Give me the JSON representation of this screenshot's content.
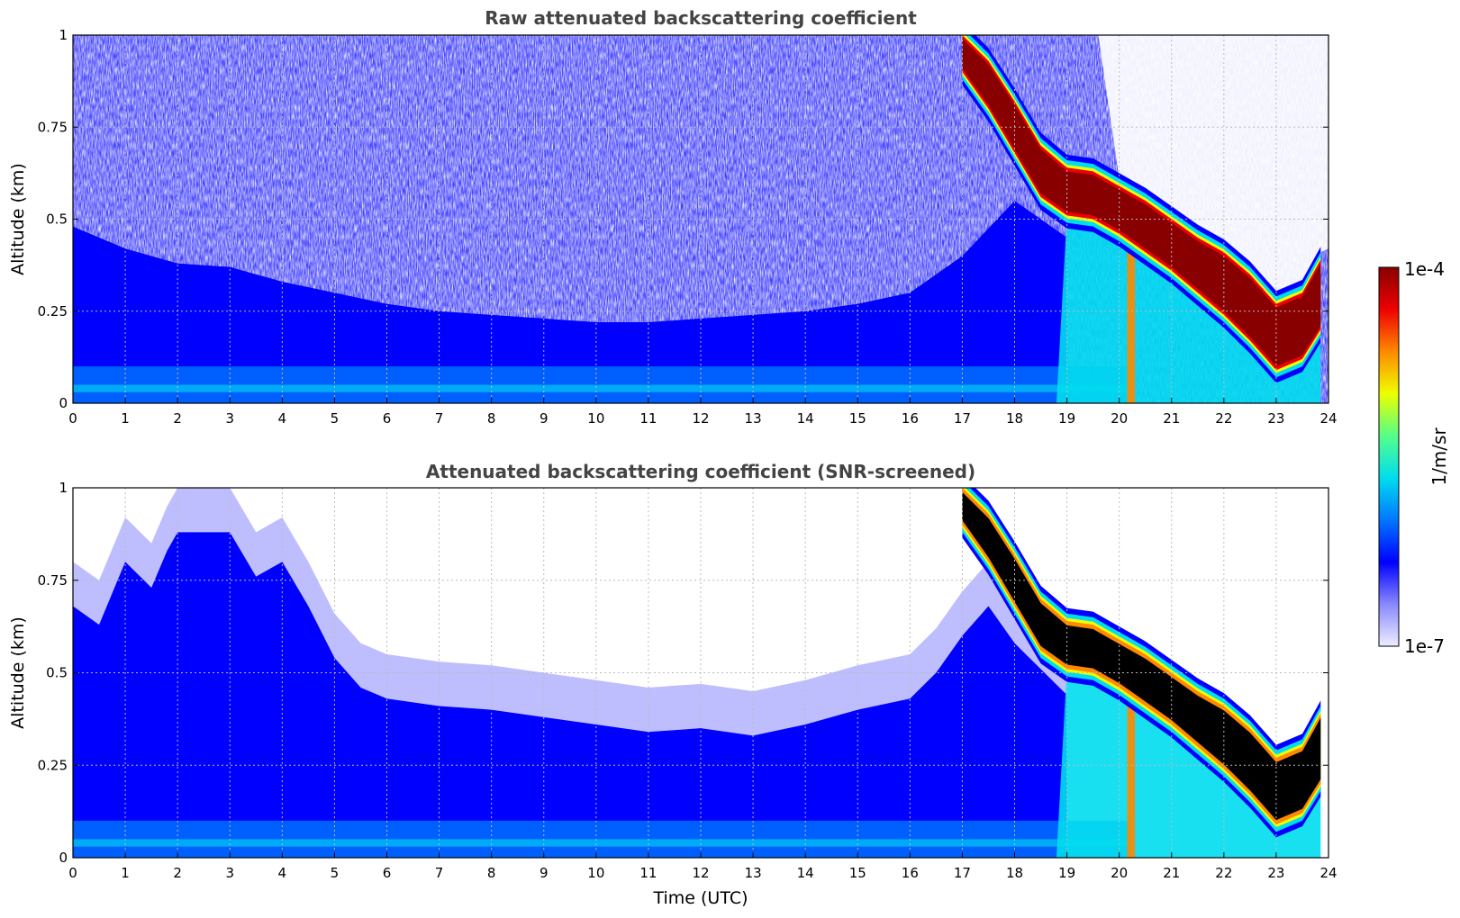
{
  "chart_data": [
    {
      "type": "heatmap",
      "title": "Raw attenuated backscattering coefficient",
      "xlabel": "",
      "ylabel": "Altitude (km)",
      "xlim": [
        0,
        24
      ],
      "ylim": [
        0,
        1
      ],
      "xticks": [
        0,
        1,
        2,
        3,
        4,
        5,
        6,
        7,
        8,
        9,
        10,
        11,
        12,
        13,
        14,
        15,
        16,
        17,
        18,
        19,
        20,
        21,
        22,
        23,
        24
      ],
      "yticks": [
        0,
        0.25,
        0.5,
        0.75,
        1
      ],
      "ytick_labels": [
        "0",
        "0.25",
        "0.5",
        "0.75",
        "1"
      ],
      "grid": true,
      "noise_screened": false,
      "cloud_layer_top_km": [
        [
          17.0,
          1.0
        ],
        [
          17.5,
          0.93
        ],
        [
          18.0,
          0.82
        ],
        [
          18.5,
          0.7
        ],
        [
          19.0,
          0.64
        ],
        [
          19.5,
          0.63
        ],
        [
          20.0,
          0.59
        ],
        [
          20.5,
          0.55
        ],
        [
          21.0,
          0.5
        ],
        [
          21.5,
          0.45
        ],
        [
          22.0,
          0.41
        ],
        [
          22.5,
          0.35
        ],
        [
          23.0,
          0.27
        ],
        [
          23.5,
          0.3
        ],
        [
          23.85,
          0.39
        ]
      ],
      "cloud_layer_base_km": [
        [
          17.0,
          0.9
        ],
        [
          17.5,
          0.8
        ],
        [
          18.0,
          0.68
        ],
        [
          18.5,
          0.56
        ],
        [
          19.0,
          0.51
        ],
        [
          19.5,
          0.5
        ],
        [
          20.0,
          0.46
        ],
        [
          20.5,
          0.41
        ],
        [
          21.0,
          0.36
        ],
        [
          21.5,
          0.3
        ],
        [
          22.0,
          0.24
        ],
        [
          22.5,
          0.17
        ],
        [
          23.0,
          0.09
        ],
        [
          23.5,
          0.12
        ],
        [
          23.85,
          0.2
        ]
      ],
      "boundary_layer_top_km": [
        [
          0,
          0.48
        ],
        [
          1,
          0.42
        ],
        [
          2,
          0.38
        ],
        [
          3,
          0.37
        ],
        [
          4,
          0.33
        ],
        [
          5,
          0.3
        ],
        [
          6,
          0.27
        ],
        [
          7,
          0.25
        ],
        [
          8,
          0.24
        ],
        [
          9,
          0.23
        ],
        [
          10,
          0.22
        ],
        [
          11,
          0.22
        ],
        [
          12,
          0.23
        ],
        [
          13,
          0.24
        ],
        [
          14,
          0.25
        ],
        [
          15,
          0.27
        ],
        [
          16,
          0.3
        ],
        [
          17,
          0.4
        ],
        [
          18,
          0.55
        ],
        [
          19,
          0.45
        ]
      ]
    },
    {
      "type": "heatmap",
      "title": "Attenuated backscattering coefficient (SNR-screened)",
      "xlabel": "Time (UTC)",
      "ylabel": "Altitude (km)",
      "xlim": [
        0,
        24
      ],
      "ylim": [
        0,
        1
      ],
      "xticks": [
        0,
        1,
        2,
        3,
        4,
        5,
        6,
        7,
        8,
        9,
        10,
        11,
        12,
        13,
        14,
        15,
        16,
        17,
        18,
        19,
        20,
        21,
        22,
        23,
        24
      ],
      "yticks": [
        0,
        0.25,
        0.5,
        0.75,
        1
      ],
      "ytick_labels": [
        "0",
        "0.25",
        "0.5",
        "0.75",
        "1"
      ],
      "grid": true,
      "noise_screened": true,
      "signal_top_km": [
        [
          0,
          0.8
        ],
        [
          0.5,
          0.75
        ],
        [
          1,
          0.92
        ],
        [
          1.5,
          0.85
        ],
        [
          1.8,
          0.95
        ],
        [
          2,
          1.0
        ],
        [
          3,
          1.0
        ],
        [
          3.5,
          0.88
        ],
        [
          4,
          0.92
        ],
        [
          4.5,
          0.8
        ],
        [
          5,
          0.66
        ],
        [
          5.5,
          0.58
        ],
        [
          6,
          0.55
        ],
        [
          7,
          0.53
        ],
        [
          8,
          0.52
        ],
        [
          9,
          0.5
        ],
        [
          10,
          0.48
        ],
        [
          11,
          0.46
        ],
        [
          12,
          0.47
        ],
        [
          13,
          0.45
        ],
        [
          14,
          0.48
        ],
        [
          15,
          0.52
        ],
        [
          16,
          0.55
        ],
        [
          16.5,
          0.62
        ],
        [
          17,
          0.72
        ],
        [
          17.5,
          0.8
        ],
        [
          18,
          0.7
        ],
        [
          19,
          0.56
        ]
      ],
      "cloud_layer_top_km": [
        [
          17.0,
          1.0
        ],
        [
          17.5,
          0.93
        ],
        [
          18.0,
          0.82
        ],
        [
          18.5,
          0.7
        ],
        [
          19.0,
          0.64
        ],
        [
          19.5,
          0.63
        ],
        [
          20.0,
          0.59
        ],
        [
          20.5,
          0.55
        ],
        [
          21.0,
          0.5
        ],
        [
          21.5,
          0.45
        ],
        [
          22.0,
          0.41
        ],
        [
          22.5,
          0.35
        ],
        [
          23.0,
          0.27
        ],
        [
          23.5,
          0.3
        ],
        [
          23.85,
          0.39
        ]
      ],
      "cloud_layer_base_km": [
        [
          17.0,
          0.9
        ],
        [
          17.5,
          0.8
        ],
        [
          18.0,
          0.68
        ],
        [
          18.5,
          0.56
        ],
        [
          19.0,
          0.51
        ],
        [
          19.5,
          0.5
        ],
        [
          20.0,
          0.46
        ],
        [
          20.5,
          0.41
        ],
        [
          21.0,
          0.36
        ],
        [
          21.5,
          0.3
        ],
        [
          22.0,
          0.24
        ],
        [
          22.5,
          0.17
        ],
        [
          23.0,
          0.09
        ],
        [
          23.5,
          0.12
        ],
        [
          23.85,
          0.2
        ]
      ],
      "saturated_color": "#000000"
    }
  ],
  "colorbar": {
    "label": "1/m/sr",
    "min_label": "1e-7",
    "max_label": "1e-4",
    "scale": "log",
    "colormap": [
      "#eeeeff",
      "#8888ff",
      "#0000ff",
      "#0077ff",
      "#00ddee",
      "#55ff88",
      "#eeff00",
      "#ff8800",
      "#ee0000",
      "#880000"
    ]
  }
}
